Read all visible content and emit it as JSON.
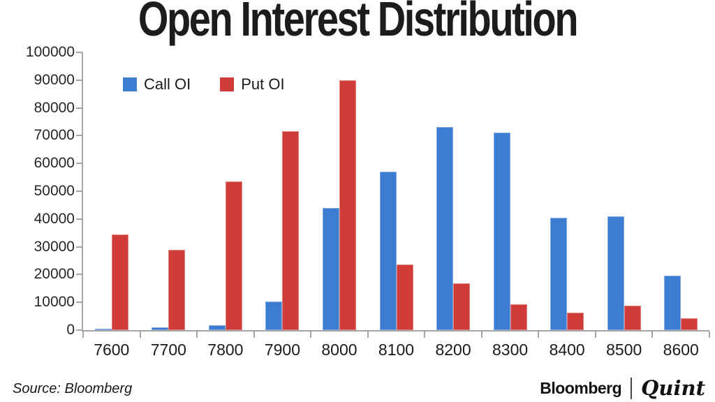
{
  "title": "Open Interest Distribution",
  "source": "Source: Bloomberg",
  "branding": {
    "left": "Bloomberg",
    "right": "Quint"
  },
  "legend": [
    {
      "label": "Call OI",
      "color": "#3C7DD2"
    },
    {
      "label": "Put OI",
      "color": "#D03C38"
    }
  ],
  "chart_data": {
    "type": "bar",
    "title": "Open Interest Distribution",
    "categories": [
      "7600",
      "7700",
      "7800",
      "7900",
      "8000",
      "8100",
      "8200",
      "8300",
      "8400",
      "8500",
      "8600"
    ],
    "series": [
      {
        "name": "Call OI",
        "color": "#3C7DD2",
        "values": [
          500,
          1000,
          1700,
          10300,
          44000,
          57000,
          73200,
          71000,
          40400,
          41000,
          19500
        ]
      },
      {
        "name": "Put OI",
        "color": "#D03C38",
        "values": [
          34500,
          28800,
          53500,
          71500,
          90000,
          23700,
          16800,
          9200,
          6400,
          8800,
          4300
        ]
      }
    ],
    "xlabel": "",
    "ylabel": "",
    "ylim": [
      0,
      100000
    ],
    "ytick_step": 10000,
    "grid": false,
    "legend_position": "top-left-inside",
    "axis_color": "#a6a6a6"
  }
}
